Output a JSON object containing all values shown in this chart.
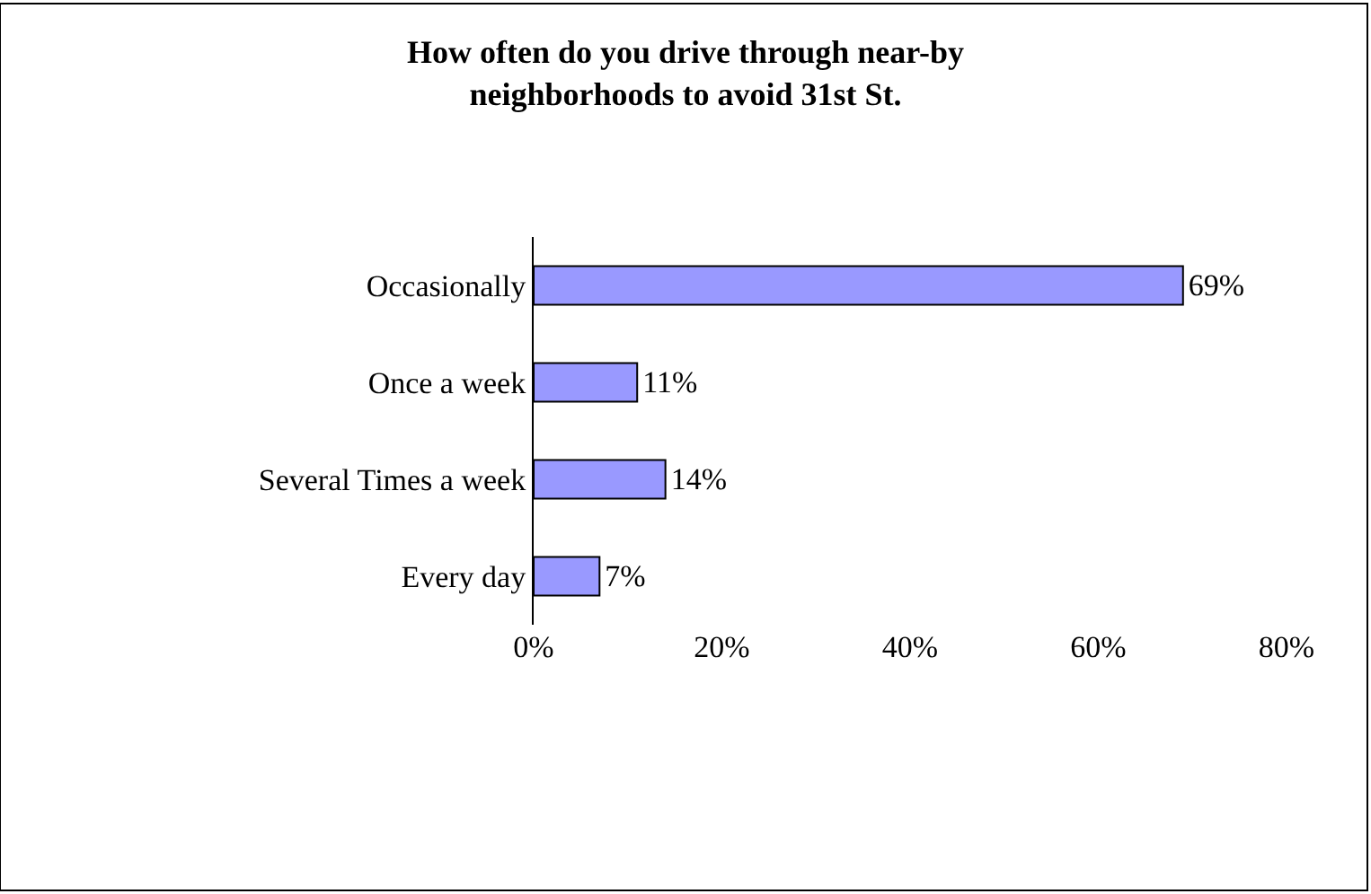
{
  "chart_data": {
    "type": "bar",
    "orientation": "horizontal",
    "title": "How often do you drive through near-by\nneighborhoods to avoid 31st St.",
    "categories": [
      "Occasionally",
      "Once a week",
      "Several Times a week",
      "Every day"
    ],
    "values": [
      69,
      11,
      14,
      7
    ],
    "value_labels": [
      "69%",
      "11%",
      "14%",
      "7%"
    ],
    "color": "#9999ff",
    "xlim": [
      0,
      80
    ],
    "xticks": [
      {
        "value": 0,
        "label": "0%"
      },
      {
        "value": 20,
        "label": "20%"
      },
      {
        "value": 40,
        "label": "40%"
      },
      {
        "value": 60,
        "label": "60%"
      },
      {
        "value": 80,
        "label": "80%"
      }
    ],
    "legend": false
  }
}
